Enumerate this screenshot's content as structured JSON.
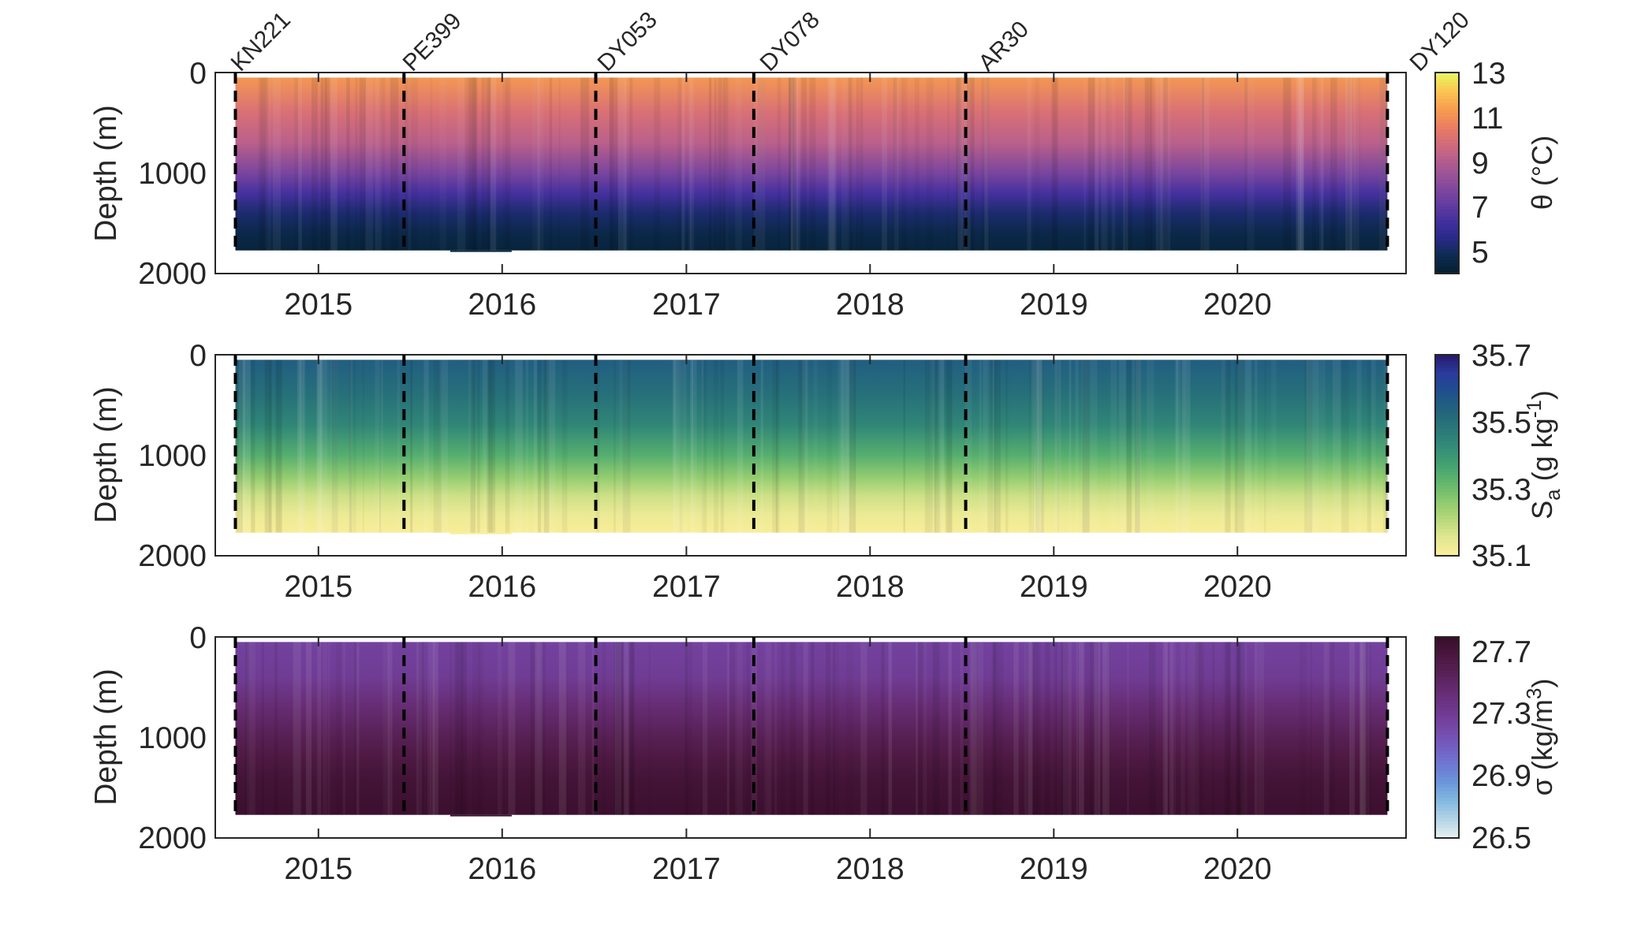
{
  "chart_data": {
    "type": "heatmap",
    "layout": "3 stacked panels sharing a time axis, each with a colorbar on the right",
    "x_axis": {
      "kind": "date",
      "range": [
        "2014-06-10",
        "2020-12-01"
      ],
      "ticks": [
        "2015",
        "2016",
        "2017",
        "2018",
        "2019",
        "2020"
      ],
      "tick_dates": [
        "2015-01-01",
        "2016-01-01",
        "2017-01-01",
        "2018-01-01",
        "2019-01-01",
        "2020-01-01"
      ]
    },
    "cruises": [
      {
        "name": "KN221",
        "date": "2014-07-20"
      },
      {
        "name": "PE399",
        "date": "2015-06-20"
      },
      {
        "name": "DY053",
        "date": "2016-07-05"
      },
      {
        "name": "DY078",
        "date": "2017-05-15"
      },
      {
        "name": "AR30",
        "date": "2018-07-10"
      },
      {
        "name": "DY120",
        "date": "2020-10-25"
      }
    ],
    "data_extent": {
      "start": "2014-07-20",
      "end": "2020-10-25",
      "top_depth_m": 50,
      "bottom_depth_m": 1770,
      "extra_deep_segment": {
        "start": "2015-09-20",
        "end": "2016-01-20",
        "depth_m": 1785
      }
    },
    "panels": [
      {
        "id": "theta",
        "ylabel": "Depth (m)",
        "yticks": [
          "0",
          "1000",
          "2000"
        ],
        "ylim": [
          2000,
          0
        ],
        "colorbar": {
          "label": "θ (°C)",
          "ticks": [
            "13",
            "11",
            "9",
            "7",
            "5"
          ],
          "range": [
            4,
            13
          ],
          "colormap": "thermal",
          "colors": [
            "#04202f",
            "#0e2b52",
            "#2a2a8c",
            "#47329f",
            "#6b3fa0",
            "#8d4d9b",
            "#ae5b90",
            "#cf6a7e",
            "#ea7c62",
            "#f79e4f",
            "#fbc653",
            "#e7f85f"
          ]
        },
        "profile": [
          {
            "depth": 50,
            "value": 11.2
          },
          {
            "depth": 400,
            "value": 10.0
          },
          {
            "depth": 700,
            "value": 9.2
          },
          {
            "depth": 1000,
            "value": 7.6
          },
          {
            "depth": 1200,
            "value": 6.4
          },
          {
            "depth": 1400,
            "value": 5.2
          },
          {
            "depth": 1600,
            "value": 4.6
          },
          {
            "depth": 1770,
            "value": 4.3
          }
        ]
      },
      {
        "id": "salinity",
        "ylabel": "Depth (m)",
        "yticks": [
          "0",
          "1000",
          "2000"
        ],
        "ylim": [
          2000,
          0
        ],
        "colorbar": {
          "label_main": "S",
          "label_sub": "a",
          "label_unit": " (g kg",
          "label_sup": "-1",
          "label_end": ")",
          "ticks": [
            "35.7",
            "35.5",
            "35.3",
            "35.1"
          ],
          "range": [
            35.1,
            35.7
          ],
          "colormap": "haline",
          "colors": [
            "#fdef9a",
            "#e0e691",
            "#b6d97a",
            "#8bc96e",
            "#62b66d",
            "#43a171",
            "#328b77",
            "#2a7679",
            "#22637d",
            "#1f4f8d",
            "#2a3a9d",
            "#29186b"
          ]
        },
        "profile": [
          {
            "depth": 50,
            "value": 35.55
          },
          {
            "depth": 400,
            "value": 35.5
          },
          {
            "depth": 700,
            "value": 35.44
          },
          {
            "depth": 1000,
            "value": 35.34
          },
          {
            "depth": 1200,
            "value": 35.26
          },
          {
            "depth": 1400,
            "value": 35.18
          },
          {
            "depth": 1600,
            "value": 35.13
          },
          {
            "depth": 1770,
            "value": 35.11
          }
        ]
      },
      {
        "id": "density",
        "ylabel": "Depth (m)",
        "yticks": [
          "0",
          "1000",
          "2000"
        ],
        "ylim": [
          2000,
          0
        ],
        "colorbar": {
          "label": "σ (kg/m",
          "label_sup": "3",
          "label_end": ")",
          "ticks": [
            "27.7",
            "27.3",
            "26.9",
            "26.5"
          ],
          "range": [
            26.5,
            27.8
          ],
          "colormap": "dense",
          "colors": [
            "#e6f1f1",
            "#b3d5e6",
            "#85b9df",
            "#6b97db",
            "#6e78d2",
            "#745dc0",
            "#7548a8",
            "#6f388e",
            "#662c74",
            "#592157",
            "#4b173f",
            "#360d29"
          ]
        },
        "profile": [
          {
            "depth": 50,
            "value": 27.25
          },
          {
            "depth": 400,
            "value": 27.3
          },
          {
            "depth": 700,
            "value": 27.45
          },
          {
            "depth": 1000,
            "value": 27.58
          },
          {
            "depth": 1200,
            "value": 27.66
          },
          {
            "depth": 1400,
            "value": 27.72
          },
          {
            "depth": 1600,
            "value": 27.75
          },
          {
            "depth": 1770,
            "value": 27.77
          }
        ]
      }
    ]
  }
}
